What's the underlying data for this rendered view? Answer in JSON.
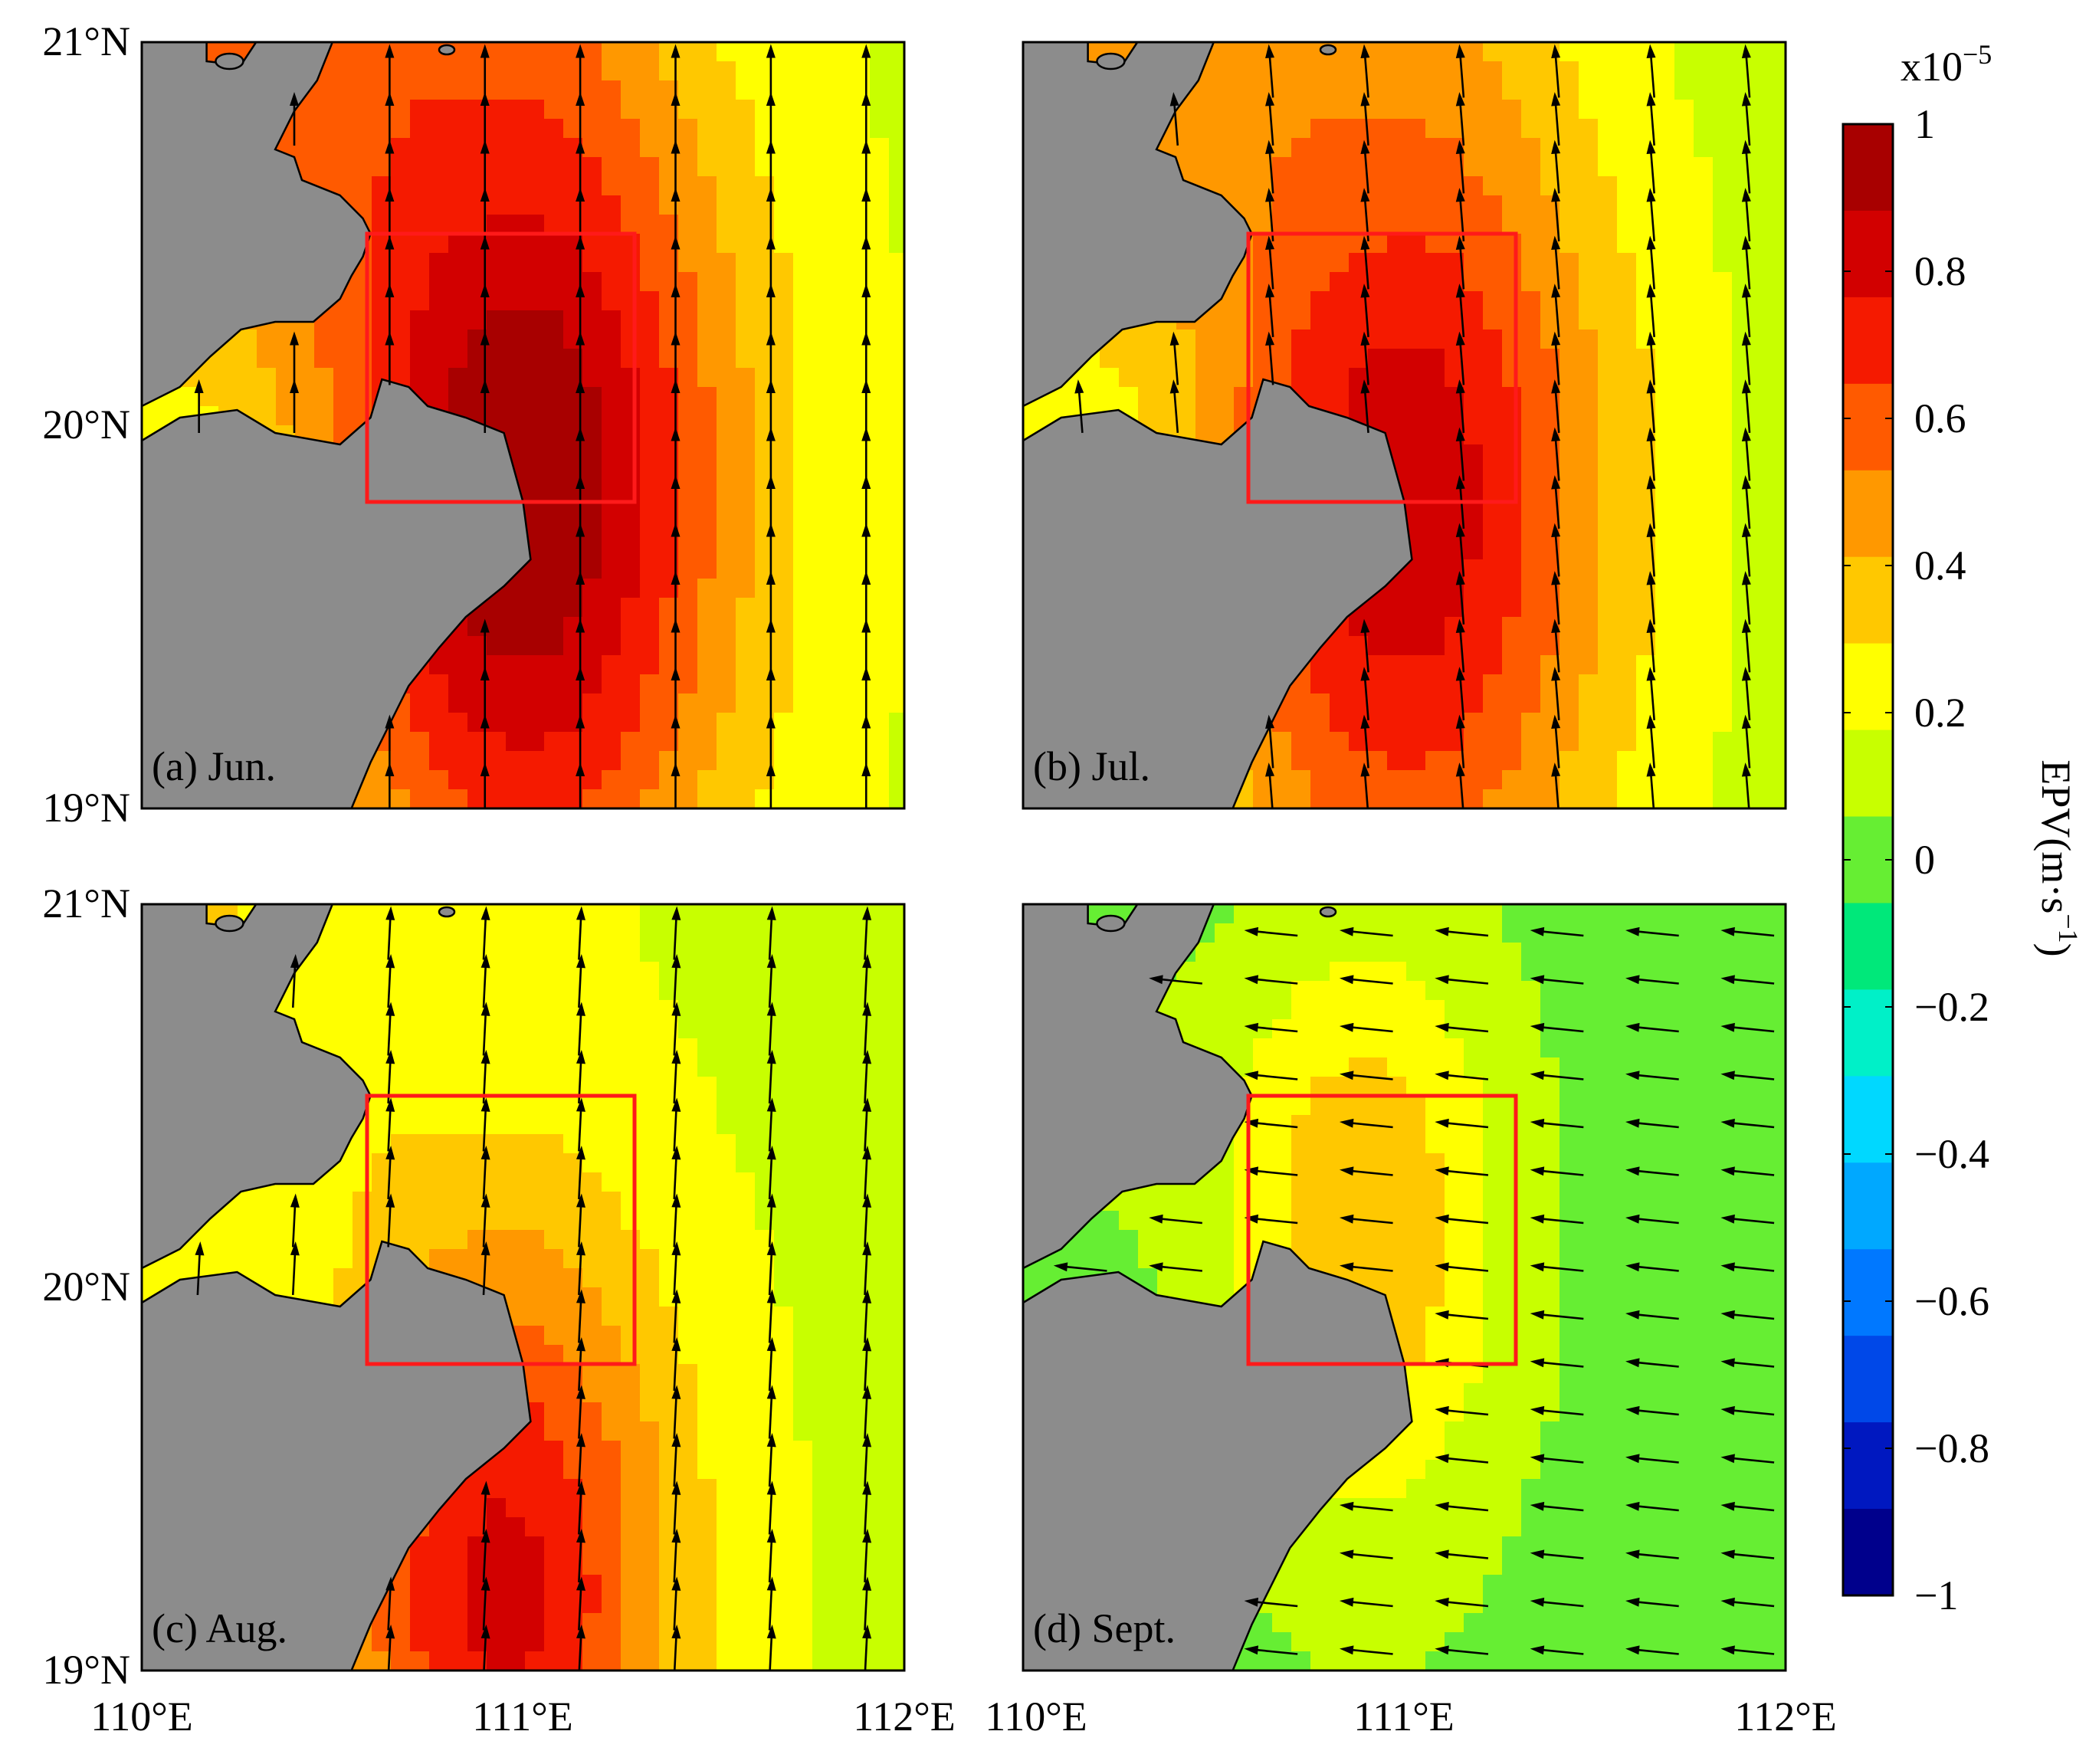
{
  "panels": [
    {
      "key": "a",
      "label": "(a) Jun.",
      "field": {
        "cx": 111.0,
        "cy": 19.85,
        "peak": 1.0,
        "spread": 0.55,
        "bg": 0.15,
        "coast": 0.55,
        "north": 0.8
      },
      "wind": {
        "u": 0.0,
        "v": 1.0
      }
    },
    {
      "key": "b",
      "label": "(b) Jul.",
      "field": {
        "cx": 111.0,
        "cy": 19.8,
        "peak": 0.85,
        "spread": 0.55,
        "bg": 0.12,
        "coast": 0.45,
        "north": 0.6
      },
      "wind": {
        "u": -0.08,
        "v": 1.0
      }
    },
    {
      "key": "c",
      "label": "(c) Aug.",
      "field": {
        "cx": 110.95,
        "cy": 19.2,
        "peak": 0.8,
        "spread": 0.45,
        "bg": 0.15,
        "coast": 0.3,
        "north": 0.25
      },
      "wind": {
        "u": 0.05,
        "v": 1.0
      }
    },
    {
      "key": "d",
      "label": "(d) Sept.",
      "field": {
        "cx": 110.9,
        "cy": 20.15,
        "peak": 0.4,
        "spread": 0.35,
        "bg": 0.02,
        "coast": 0.15,
        "north": -0.12
      },
      "wind": {
        "u": -1.0,
        "v": 0.1
      }
    }
  ],
  "axes": {
    "lon_range": [
      110,
      112
    ],
    "lat_range": [
      19,
      21
    ],
    "lon_ticks": [
      "110°E",
      "111°E",
      "112°E"
    ],
    "lat_ticks": [
      "21°N",
      "20°N",
      "19°N"
    ]
  },
  "region_box": {
    "lon": [
      110.6,
      111.3
    ],
    "lat": [
      19.8,
      20.5
    ]
  },
  "colorbar": {
    "title": "EPV(m·s",
    "title_sup": "−1",
    "title_close": ")",
    "scale_text": "x10",
    "scale_sup": "−5",
    "range": [
      -1,
      1
    ],
    "tick_labels": [
      "1",
      "0.8",
      "0.6",
      "0.4",
      "0.2",
      "0",
      "−0.2",
      "−0.4",
      "−0.6",
      "−0.8",
      "−1"
    ],
    "colors": [
      "#a80000",
      "#d20000",
      "#f51a00",
      "#ff5a00",
      "#ff9800",
      "#ffc800",
      "#ffff00",
      "#c8ff00",
      "#66ee33",
      "#00e87a",
      "#00f0c8",
      "#00d8ff",
      "#00a8ff",
      "#0078ff",
      "#0048e8",
      "#0018c0",
      "#00008c"
    ]
  },
  "land_color": "#8c8c8c",
  "box_color": "#ff1a1a"
}
